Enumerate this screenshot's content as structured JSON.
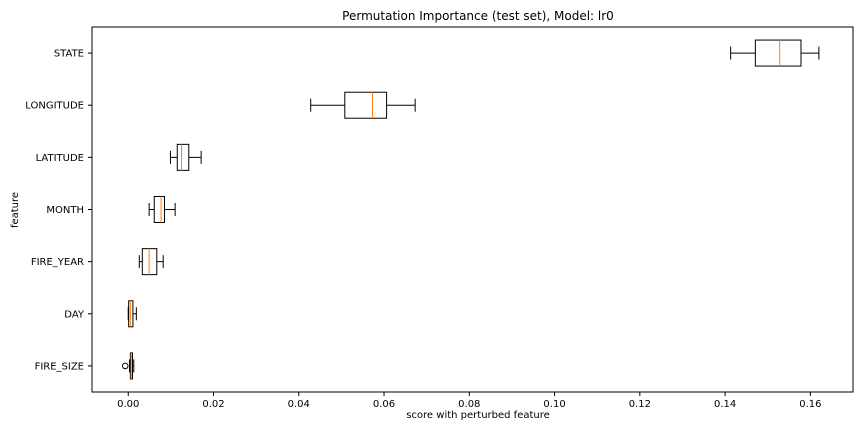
{
  "chart_data": {
    "type": "boxplot",
    "orientation": "horizontal",
    "title": "Permutation Importance (test set), Model: lr0",
    "xlabel": "score with perturbed feature",
    "ylabel": "feature",
    "xlim": [
      -0.0085,
      0.17
    ],
    "x_ticks": [
      0.0,
      0.02,
      0.04,
      0.06,
      0.08,
      0.1,
      0.12,
      0.14,
      0.16
    ],
    "x_tick_labels": [
      "0.00",
      "0.02",
      "0.04",
      "0.06",
      "0.08",
      "0.10",
      "0.12",
      "0.14",
      "0.16"
    ],
    "categories": [
      "STATE",
      "LONGITUDE",
      "LATITUDE",
      "MONTH",
      "FIRE_YEAR",
      "DAY",
      "FIRE_SIZE"
    ],
    "boxes": [
      {
        "feature": "STATE",
        "whisker_low": 0.1413,
        "q1": 0.1471,
        "median": 0.1528,
        "q3": 0.1578,
        "whisker_high": 0.162,
        "outliers": []
      },
      {
        "feature": "LONGITUDE",
        "whisker_low": 0.0428,
        "q1": 0.0508,
        "median": 0.0573,
        "q3": 0.0606,
        "whisker_high": 0.0673,
        "outliers": []
      },
      {
        "feature": "LATITUDE",
        "whisker_low": 0.0099,
        "q1": 0.0115,
        "median": 0.0125,
        "q3": 0.0142,
        "whisker_high": 0.0171,
        "outliers": []
      },
      {
        "feature": "MONTH",
        "whisker_low": 0.0049,
        "q1": 0.0061,
        "median": 0.0077,
        "q3": 0.0085,
        "whisker_high": 0.011,
        "outliers": []
      },
      {
        "feature": "FIRE_YEAR",
        "whisker_low": 0.0026,
        "q1": 0.0033,
        "median": 0.0049,
        "q3": 0.0067,
        "whisker_high": 0.0082,
        "outliers": []
      },
      {
        "feature": "DAY",
        "whisker_low": 0.0,
        "q1": 0.0001,
        "median": 0.0005,
        "q3": 0.0011,
        "whisker_high": 0.0019,
        "outliers": []
      },
      {
        "feature": "FIRE_SIZE",
        "whisker_low": 0.0003,
        "q1": 0.0005,
        "median": 0.0007,
        "q3": 0.001,
        "whisker_high": 0.0013,
        "outliers": [
          -0.0007
        ]
      }
    ],
    "colors": {
      "box": "#000000",
      "median": "#ff7f0e",
      "axes": "#000000"
    },
    "grid": false
  }
}
